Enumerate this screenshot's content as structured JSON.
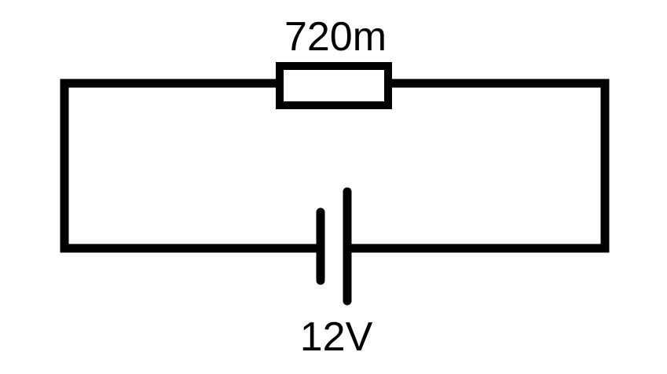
{
  "circuit": {
    "resistor": {
      "label": "720m"
    },
    "battery": {
      "label": "12V"
    },
    "colors": {
      "wire": "#000000",
      "background": "#ffffff"
    }
  }
}
